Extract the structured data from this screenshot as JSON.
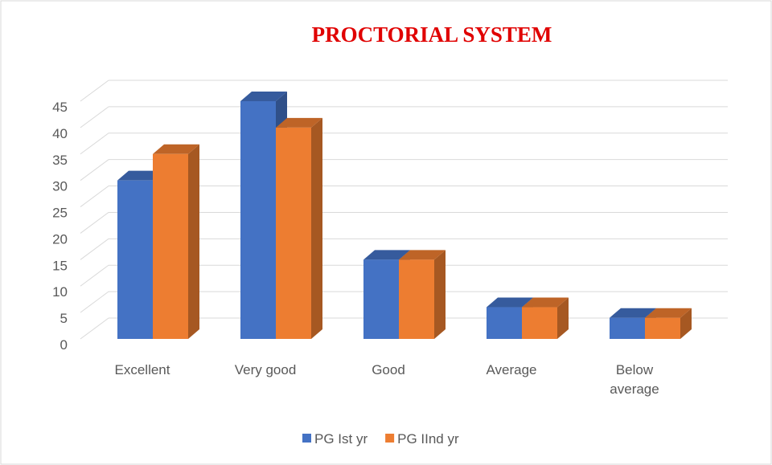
{
  "chart_data": {
    "type": "bar3d",
    "title": "PROCTORIAL SYSTEM",
    "categories": [
      "Excellent",
      "Very good",
      "Good",
      "Average",
      "Below average"
    ],
    "series": [
      {
        "name": "PG Ist yr",
        "color": "#4472c4",
        "values": [
          30,
          45,
          15,
          6,
          4
        ]
      },
      {
        "name": "PG IInd yr",
        "color": "#ed7d31",
        "values": [
          35,
          40,
          15,
          6,
          4
        ]
      }
    ],
    "ylim": [
      0,
      45
    ],
    "yticks": [
      0,
      5,
      10,
      15,
      20,
      25,
      30,
      35,
      40,
      45
    ],
    "grid": true,
    "legend": "bottom"
  }
}
